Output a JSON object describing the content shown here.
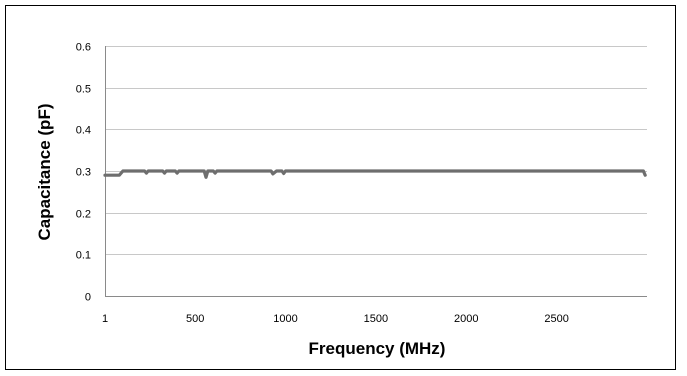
{
  "chart_data": {
    "type": "line",
    "title": "",
    "xlabel": "Frequency (MHz)",
    "ylabel": "Capacitance (pF)",
    "xlim": [
      1,
      3000
    ],
    "ylim": [
      0,
      0.6
    ],
    "x_ticks": [
      1,
      500,
      1000,
      1500,
      2000,
      2500
    ],
    "x_tick_labels": [
      "1",
      "500",
      "1000",
      "1500",
      "2000",
      "2500"
    ],
    "y_ticks": [
      0,
      0.1,
      0.2,
      0.3,
      0.4,
      0.5,
      0.6
    ],
    "y_tick_labels": [
      "0",
      "0.1",
      "0.2",
      "0.3",
      "0.4",
      "0.5",
      "0.6"
    ],
    "grid": "horizontal",
    "legend": "none",
    "series": [
      {
        "color": "#6e6e6e",
        "x": [
          1,
          40,
          80,
          100,
          220,
          230,
          240,
          320,
          330,
          340,
          390,
          400,
          410,
          550,
          560,
          570,
          600,
          610,
          620,
          920,
          930,
          950,
          980,
          990,
          1000,
          1050,
          1500,
          2000,
          2500,
          2980,
          2990
        ],
        "y": [
          0.29,
          0.29,
          0.29,
          0.3,
          0.3,
          0.295,
          0.3,
          0.3,
          0.295,
          0.3,
          0.3,
          0.295,
          0.3,
          0.3,
          0.285,
          0.3,
          0.3,
          0.295,
          0.3,
          0.3,
          0.293,
          0.3,
          0.3,
          0.294,
          0.3,
          0.3,
          0.3,
          0.3,
          0.3,
          0.3,
          0.29
        ]
      }
    ]
  }
}
